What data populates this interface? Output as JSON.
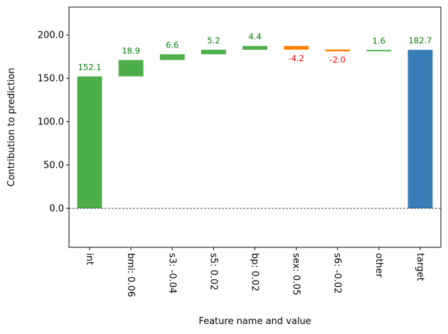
{
  "chart_data": {
    "type": "bar",
    "subtype": "waterfall",
    "xlabel": "Feature name and value",
    "ylabel": "Contribution to prediction",
    "ylim": [
      -45,
      232
    ],
    "yticks": [
      0,
      50,
      100,
      150,
      200
    ],
    "ytick_labels": [
      "0.0",
      "50.0",
      "100.0",
      "150.0",
      "200.0"
    ],
    "grid": false,
    "baseline": 0,
    "categories": [
      "int",
      "bmi: 0.06",
      "s3: -0.04",
      "s5: 0.02",
      "bp: 0.02",
      "sex: 0.05",
      "s6: -0.02",
      "other",
      "target"
    ],
    "values": [
      152.1,
      18.9,
      6.6,
      5.2,
      4.4,
      -4.2,
      -2.0,
      1.6,
      182.7
    ],
    "kinds": [
      "total",
      "delta",
      "delta",
      "delta",
      "delta",
      "delta",
      "delta",
      "delta",
      "total"
    ],
    "labels": [
      "152.1",
      "18.9",
      "6.6",
      "5.2",
      "4.4",
      "-4.2",
      "-2.0",
      "1.6",
      "182.7"
    ],
    "colors": {
      "positive": "#4daf4a",
      "negative": "#ff7f00",
      "total": "#377eb8",
      "positive_label": "#008000",
      "negative_label": "#ff0000"
    }
  }
}
